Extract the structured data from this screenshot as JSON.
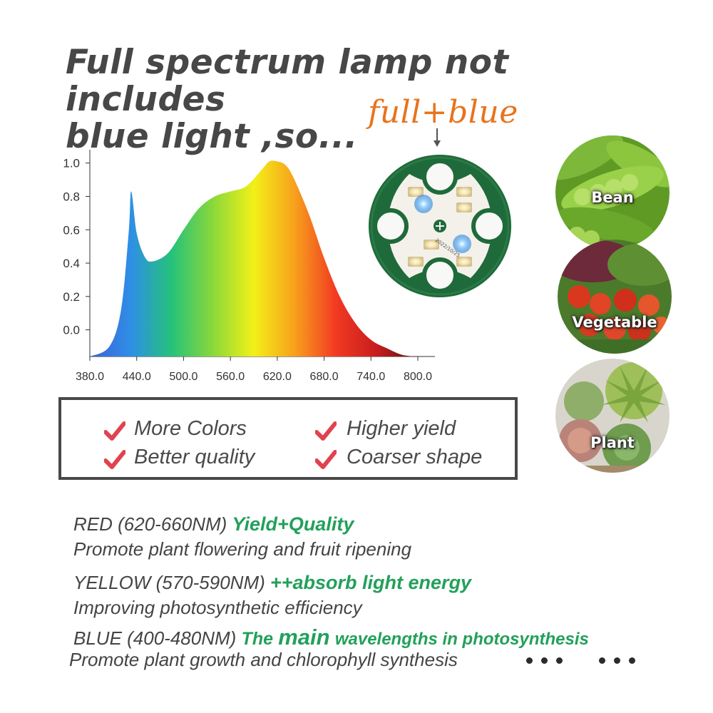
{
  "headline": {
    "line1": "Full spectrum lamp not includes",
    "line2": "blue light ,so..."
  },
  "callout": "full+blue",
  "board_date": "2022/10/25",
  "chart_data": {
    "type": "area",
    "x_ticks": [
      "380.0",
      "440.0",
      "500.0",
      "560.0",
      "620.0",
      "680.0",
      "740.0",
      "800.0"
    ],
    "y_ticks": [
      "1.0",
      "0.8",
      "0.6",
      "0.4",
      "0.2",
      "0.0"
    ],
    "xlim": [
      380,
      800
    ],
    "ylim": [
      -0.16,
      1.08
    ],
    "x": [
      380,
      405,
      420,
      430,
      433,
      440,
      450,
      460,
      480,
      500,
      520,
      540,
      560,
      580,
      600,
      610,
      620,
      630,
      640,
      660,
      680,
      700,
      720,
      740,
      760,
      780,
      800
    ],
    "y": [
      -0.16,
      -0.1,
      0.12,
      0.6,
      0.83,
      0.58,
      0.44,
      0.41,
      0.46,
      0.6,
      0.73,
      0.8,
      0.83,
      0.86,
      0.96,
      1.01,
      1.01,
      0.99,
      0.92,
      0.7,
      0.43,
      0.2,
      0.04,
      -0.06,
      -0.11,
      -0.15,
      -0.16
    ],
    "colors": [
      "#4060d8",
      "#2e8fe6",
      "#25c27a",
      "#8ad83a",
      "#f3f018",
      "#f7a01c",
      "#f23a22",
      "#c71c1e",
      "#5a0f10"
    ]
  },
  "images": [
    {
      "label": "Bean"
    },
    {
      "label": "Vegetable"
    },
    {
      "label": "Plant"
    }
  ],
  "benefits": {
    "b1": "More Colors",
    "b2": "Higher yield",
    "b3": "Better quality",
    "b4": "Coarser shape"
  },
  "colors": {
    "accent_green": "#23a05a",
    "accent_orange": "#e8731c",
    "check_red": "#e0434f"
  },
  "bands": {
    "red_name": "RED (620-660NM)",
    "red_tag": "Yield+Quality",
    "red_desc": "Promote plant flowering and fruit ripening",
    "yellow_name": "YELLOW (570-590NM)",
    "yellow_tag": "++absorb light energy",
    "yellow_desc": "Improving photosynthetic efficiency",
    "blue_name": "BLUE (400-480NM)",
    "blue_tag_1": "The",
    "blue_tag_2": "main",
    "blue_tag_3": "wavelengths in photosynthesis",
    "blue_desc": "Promote plant growth and chlorophyll synthesis"
  }
}
